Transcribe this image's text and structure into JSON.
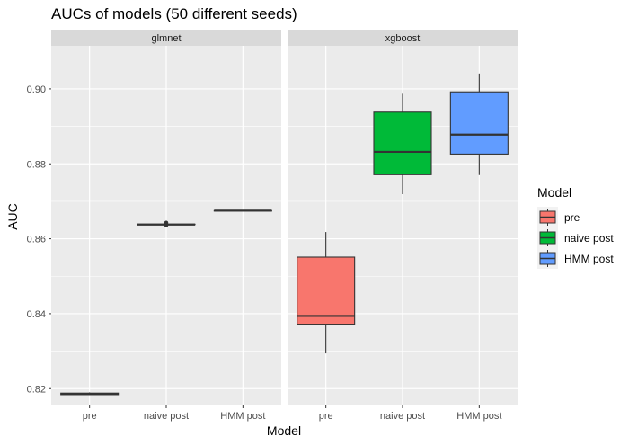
{
  "chart_data": {
    "type": "boxplot",
    "title": "AUCs of models (50 different seeds)",
    "xlabel": "Model",
    "ylabel": "AUC",
    "ylim": [
      0.8155,
      0.9115
    ],
    "yticks": [
      0.82,
      0.84,
      0.86,
      0.88,
      0.9
    ],
    "ytick_labels": [
      "0.82",
      "0.84",
      "0.86",
      "0.88",
      "0.90"
    ],
    "categories": [
      "pre",
      "naive post",
      "HMM post"
    ],
    "legend": {
      "title": "Model",
      "position": "right",
      "entries": [
        {
          "label": "pre",
          "color": "#F8766D"
        },
        {
          "label": "naive post",
          "color": "#00BA38"
        },
        {
          "label": "HMM post",
          "color": "#619CFF"
        }
      ]
    },
    "panels": [
      {
        "name": "glmnet",
        "boxes": [
          {
            "category": "pre",
            "min": 0.8183,
            "q1": 0.8184,
            "median": 0.8186,
            "q3": 0.8188,
            "max": 0.819,
            "outliers": []
          },
          {
            "category": "naive post",
            "min": 0.8637,
            "q1": 0.8638,
            "median": 0.8638,
            "q3": 0.8639,
            "max": 0.864,
            "outliers": [
              0.8636,
              0.8641,
              0.8643
            ]
          },
          {
            "category": "HMM post",
            "min": 0.8675,
            "q1": 0.8675,
            "median": 0.8675,
            "q3": 0.8675,
            "max": 0.8675,
            "outliers": []
          }
        ]
      },
      {
        "name": "xgboost",
        "boxes": [
          {
            "category": "pre",
            "min": 0.8294,
            "q1": 0.8372,
            "median": 0.8394,
            "q3": 0.8551,
            "max": 0.8618,
            "outliers": []
          },
          {
            "category": "naive post",
            "min": 0.8719,
            "q1": 0.8771,
            "median": 0.8832,
            "q3": 0.8938,
            "max": 0.8987,
            "outliers": []
          },
          {
            "category": "HMM post",
            "min": 0.877,
            "q1": 0.8826,
            "median": 0.8878,
            "q3": 0.8992,
            "max": 0.9041,
            "outliers": []
          }
        ]
      }
    ],
    "grid": true,
    "theme": {
      "panel_background": "#EBEBEB",
      "strip_background": "#D9D9D9",
      "grid_color": "#FFFFFF"
    }
  }
}
